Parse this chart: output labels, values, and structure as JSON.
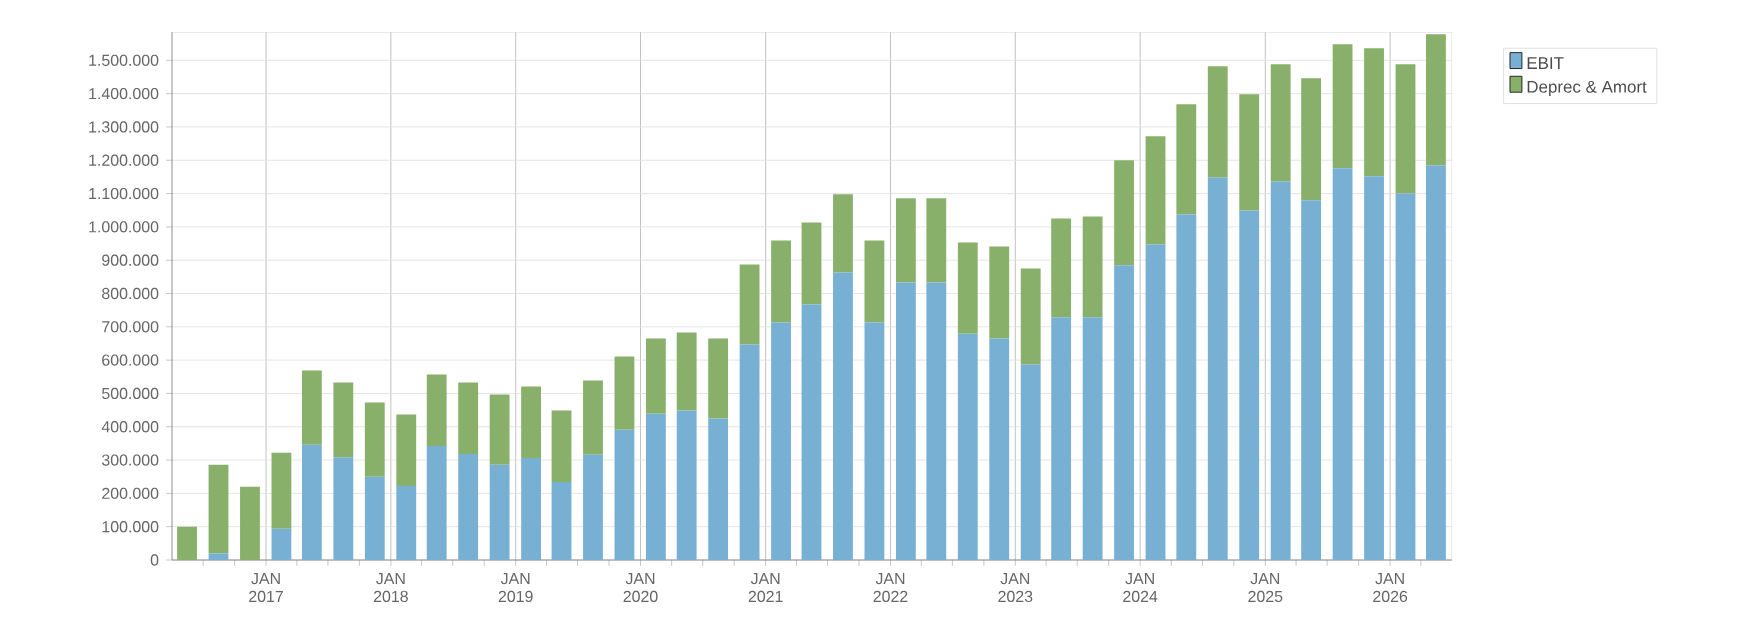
{
  "chart_data": {
    "type": "bar",
    "stacked": true,
    "x": [
      "2016-05-15",
      "2016-08-15",
      "2016-11-15",
      "2017-02-15",
      "2017-05-15",
      "2017-08-15",
      "2017-11-15",
      "2018-02-15",
      "2018-05-15",
      "2018-08-15",
      "2018-11-15",
      "2019-02-15",
      "2019-05-15",
      "2019-08-15",
      "2019-11-15",
      "2020-02-15",
      "2020-05-15",
      "2020-08-15",
      "2020-11-15",
      "2021-02-15",
      "2021-05-15",
      "2021-08-15",
      "2021-11-15",
      "2022-02-15",
      "2022-05-15",
      "2022-08-15",
      "2022-11-15",
      "2023-02-15",
      "2023-05-15",
      "2023-08-15",
      "2023-11-15",
      "2024-02-15",
      "2024-05-15",
      "2024-08-15",
      "2024-11-15",
      "2025-02-15",
      "2025-05-15",
      "2025-08-15",
      "2025-11-15",
      "2026-02-15",
      "2026-05-15"
    ],
    "series": [
      {
        "name": "EBIT",
        "color": "#77b0d3",
        "values": [
          0,
          20000,
          0,
          94000,
          346000,
          308000,
          250000,
          222000,
          342000,
          318000,
          286000,
          306000,
          234000,
          316000,
          391000,
          439000,
          449000,
          425000,
          647000,
          713000,
          767000,
          863000,
          713000,
          833000,
          833000,
          679000,
          665000,
          587000,
          729000,
          729000,
          885000,
          947000,
          1037000,
          1148000,
          1049000,
          1136000,
          1080000,
          1176000,
          1152000,
          1100000,
          1184000
        ]
      },
      {
        "name": "Deprec & Amort",
        "color": "#88b06a",
        "values": [
          100000,
          266000,
          220000,
          228000,
          223000,
          225000,
          223000,
          215000,
          215000,
          215000,
          211000,
          215000,
          215000,
          223000,
          220000,
          226000,
          234000,
          240000,
          240000,
          246000,
          246000,
          235000,
          246000,
          253000,
          253000,
          274000,
          276000,
          288000,
          296000,
          302000,
          315000,
          325000,
          331000,
          334000,
          349000,
          352000,
          366000,
          372000,
          384000,
          388000,
          394000
        ]
      }
    ],
    "xlim": [
      "2016-04-01",
      "2026-07-01"
    ],
    "xticks": [
      {
        "value": "2016-07-01",
        "label": null
      },
      {
        "value": "2016-10-01",
        "label": null
      },
      {
        "value": "2017-01-01",
        "label": "JAN 2017"
      },
      {
        "value": "2017-04-01",
        "label": null
      },
      {
        "value": "2017-07-01",
        "label": null
      },
      {
        "value": "2017-10-01",
        "label": null
      },
      {
        "value": "2018-01-01",
        "label": "JAN 2018"
      },
      {
        "value": "2018-04-01",
        "label": null
      },
      {
        "value": "2018-07-01",
        "label": null
      },
      {
        "value": "2018-10-01",
        "label": null
      },
      {
        "value": "2019-01-01",
        "label": "JAN 2019"
      },
      {
        "value": "2019-04-01",
        "label": null
      },
      {
        "value": "2019-07-01",
        "label": null
      },
      {
        "value": "2019-10-01",
        "label": null
      },
      {
        "value": "2020-01-01",
        "label": "JAN 2020"
      },
      {
        "value": "2020-04-01",
        "label": null
      },
      {
        "value": "2020-07-01",
        "label": null
      },
      {
        "value": "2020-10-01",
        "label": null
      },
      {
        "value": "2021-01-01",
        "label": "JAN 2021"
      },
      {
        "value": "2021-04-01",
        "label": null
      },
      {
        "value": "2021-07-01",
        "label": null
      },
      {
        "value": "2021-10-01",
        "label": null
      },
      {
        "value": "2022-01-01",
        "label": "JAN 2022"
      },
      {
        "value": "2022-04-01",
        "label": null
      },
      {
        "value": "2022-07-01",
        "label": null
      },
      {
        "value": "2022-10-01",
        "label": null
      },
      {
        "value": "2023-01-01",
        "label": "JAN 2023"
      },
      {
        "value": "2023-04-01",
        "label": null
      },
      {
        "value": "2023-07-01",
        "label": null
      },
      {
        "value": "2023-10-01",
        "label": null
      },
      {
        "value": "2024-01-01",
        "label": "JAN 2024"
      },
      {
        "value": "2024-04-01",
        "label": null
      },
      {
        "value": "2024-07-01",
        "label": null
      },
      {
        "value": "2024-10-01",
        "label": null
      },
      {
        "value": "2025-01-01",
        "label": "JAN 2025"
      },
      {
        "value": "2025-04-01",
        "label": null
      },
      {
        "value": "2025-07-01",
        "label": null
      },
      {
        "value": "2025-10-01",
        "label": null
      },
      {
        "value": "2026-01-01",
        "label": "JAN 2026"
      },
      {
        "value": "2026-04-01",
        "label": null
      }
    ],
    "ylim": [
      0,
      1585000
    ],
    "yticks": [
      {
        "value": 0,
        "label": "0"
      },
      {
        "value": 100000,
        "label": "100.000"
      },
      {
        "value": 200000,
        "label": "200.000"
      },
      {
        "value": 300000,
        "label": "300.000"
      },
      {
        "value": 400000,
        "label": "400.000"
      },
      {
        "value": 500000,
        "label": "500.000"
      },
      {
        "value": 600000,
        "label": "600.000"
      },
      {
        "value": 700000,
        "label": "700.000"
      },
      {
        "value": 800000,
        "label": "800.000"
      },
      {
        "value": 900000,
        "label": "900.000"
      },
      {
        "value": 1000000,
        "label": "1.000.000"
      },
      {
        "value": 1100000,
        "label": "1.100.000"
      },
      {
        "value": 1200000,
        "label": "1.200.000"
      },
      {
        "value": 1300000,
        "label": "1.300.000"
      },
      {
        "value": 1400000,
        "label": "1.400.000"
      },
      {
        "value": 1500000,
        "label": "1.500.000"
      }
    ],
    "grid": true,
    "legend": "top right"
  }
}
